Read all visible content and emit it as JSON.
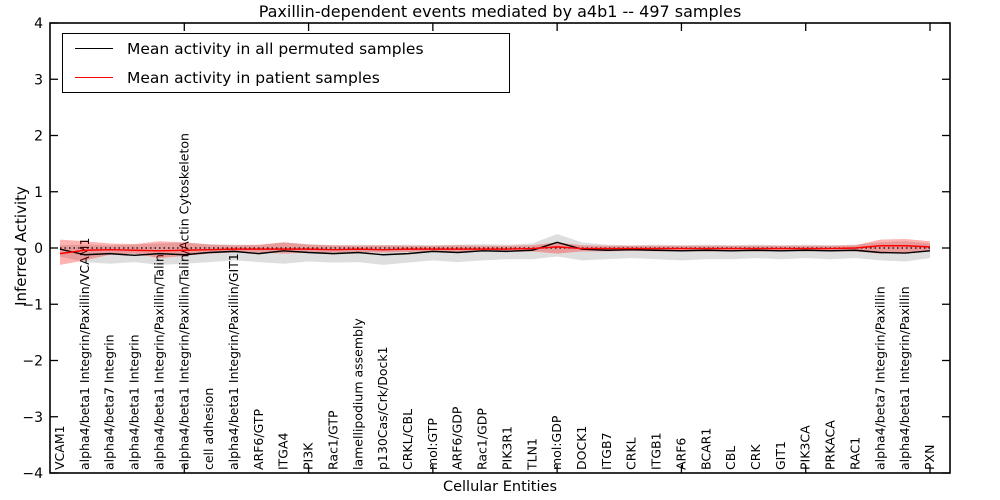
{
  "title": "Paxillin-dependent events mediated by a4b1 -- 497 samples",
  "axes": {
    "xlabel": "Cellular Entities",
    "ylabel": "Inferred Activity"
  },
  "legend": {
    "entries": [
      {
        "label": "Mean activity in all permuted samples",
        "color": "#000000"
      },
      {
        "label": "Mean activity in patient samples",
        "color": "#ff0000"
      }
    ],
    "position": "upper left"
  },
  "colors": {
    "permuted_line": "#000000",
    "patient_line": "#ff0000",
    "permuted_band": "#000000",
    "patient_band": "#ff0000",
    "frame": "#000000"
  },
  "chart_data": {
    "type": "line",
    "title": "Paxillin-dependent events mediated by a4b1 -- 497 samples",
    "xlabel": "Cellular Entities",
    "ylabel": "Inferred Activity",
    "ylim": [
      -4,
      4
    ],
    "yticks": [
      "4",
      "3",
      "2",
      "1",
      "0",
      "−1",
      "−2",
      "−3",
      "−4"
    ],
    "ytick_values": [
      4,
      3,
      2,
      1,
      0,
      -1,
      -2,
      -3,
      -4
    ],
    "xtick_every": 5,
    "grid": false,
    "legend_position": "upper left",
    "zero_line": {
      "value": 0,
      "style": "dotted",
      "color": "#000000"
    },
    "categories": [
      "VCAM1",
      "alpha4/beta1 Integrin/Paxillin/VCAM1",
      "alpha4/beta7 Integrin",
      "alpha4/beta1 Integrin",
      "alpha4/beta1 Integrin/Paxillin/Talin",
      "alpha4/beta1 Integrin/Paxillin/Talin/Actin Cytoskeleton",
      "cell adhesion",
      "alpha4/beta1 Integrin/Paxillin/GIT1",
      "ARF6/GTP",
      "ITGA4",
      "PI3K",
      "Rac1/GTP",
      "lamellipodium assembly",
      "p130Cas/Crk/Dock1",
      "CRKL/CBL",
      "mol:GTP",
      "ARF6/GDP",
      "Rac1/GDP",
      "PIK3R1",
      "TLN1",
      "mol:GDP",
      "DOCK1",
      "ITGB7",
      "CRKL",
      "ITGB1",
      "ARF6",
      "BCAR1",
      "CBL",
      "CRK",
      "GIT1",
      "PIK3CA",
      "PRKACA",
      "RAC1",
      "alpha4/beta7 Integrin/Paxillin",
      "alpha4/beta1 Integrin/Paxillin",
      "PXN"
    ],
    "series": [
      {
        "name": "Mean activity in all permuted samples",
        "color": "#000000",
        "style": "solid",
        "values": [
          -0.02,
          -0.12,
          -0.1,
          -0.13,
          -0.1,
          -0.12,
          -0.08,
          -0.06,
          -0.1,
          -0.05,
          -0.08,
          -0.1,
          -0.08,
          -0.12,
          -0.1,
          -0.06,
          -0.08,
          -0.05,
          -0.06,
          -0.04,
          0.1,
          -0.02,
          -0.04,
          -0.03,
          -0.04,
          -0.05,
          -0.04,
          -0.05,
          -0.04,
          -0.05,
          -0.04,
          -0.05,
          -0.04,
          -0.08,
          -0.09,
          -0.05
        ]
      },
      {
        "name": "Mean activity in patient samples",
        "color": "#ff0000",
        "style": "solid",
        "values": [
          -0.1,
          -0.04,
          -0.03,
          -0.04,
          -0.05,
          -0.04,
          -0.03,
          -0.02,
          -0.02,
          -0.02,
          -0.02,
          -0.03,
          -0.02,
          -0.03,
          -0.02,
          -0.02,
          -0.02,
          -0.02,
          -0.02,
          -0.01,
          0.02,
          -0.01,
          -0.01,
          -0.01,
          -0.01,
          -0.01,
          -0.01,
          -0.01,
          -0.01,
          -0.01,
          -0.01,
          -0.01,
          0.0,
          0.04,
          0.04,
          0.02
        ]
      }
    ],
    "bands": [
      {
        "name": "permuted samples range",
        "color": "#000000",
        "opacity": 0.13,
        "upper": [
          0.05,
          0.06,
          0.05,
          0.06,
          0.08,
          0.1,
          0.07,
          0.06,
          0.05,
          0.1,
          0.07,
          0.05,
          0.06,
          0.05,
          0.06,
          0.05,
          0.06,
          0.07,
          0.06,
          0.08,
          0.25,
          0.1,
          0.06,
          0.05,
          0.06,
          0.05,
          0.06,
          0.05,
          0.06,
          0.05,
          0.06,
          0.05,
          0.06,
          0.1,
          0.12,
          0.08
        ],
        "lower": [
          -0.15,
          -0.25,
          -0.28,
          -0.25,
          -0.3,
          -0.28,
          -0.25,
          -0.22,
          -0.25,
          -0.28,
          -0.24,
          -0.26,
          -0.25,
          -0.3,
          -0.26,
          -0.22,
          -0.25,
          -0.22,
          -0.2,
          -0.2,
          -0.15,
          -0.22,
          -0.2,
          -0.18,
          -0.2,
          -0.22,
          -0.2,
          -0.2,
          -0.18,
          -0.2,
          -0.18,
          -0.2,
          -0.18,
          -0.22,
          -0.24,
          -0.18
        ]
      },
      {
        "name": "patient samples range",
        "color": "#ff0000",
        "opacity": 0.3,
        "upper": [
          0.15,
          0.12,
          0.08,
          0.07,
          0.12,
          0.1,
          0.06,
          0.05,
          0.06,
          0.1,
          0.06,
          0.05,
          0.04,
          0.05,
          0.04,
          0.04,
          0.05,
          0.04,
          0.04,
          0.05,
          0.1,
          0.05,
          0.04,
          0.04,
          0.04,
          0.04,
          0.04,
          0.04,
          0.04,
          0.04,
          0.04,
          0.04,
          0.05,
          0.15,
          0.16,
          0.12
        ],
        "lower": [
          -0.3,
          -0.22,
          -0.12,
          -0.1,
          -0.18,
          -0.14,
          -0.1,
          -0.08,
          -0.08,
          -0.1,
          -0.08,
          -0.08,
          -0.07,
          -0.08,
          -0.07,
          -0.06,
          -0.07,
          -0.06,
          -0.06,
          -0.06,
          -0.1,
          -0.06,
          -0.06,
          -0.05,
          -0.06,
          -0.05,
          -0.06,
          -0.05,
          -0.06,
          -0.05,
          -0.05,
          -0.05,
          -0.06,
          -0.1,
          -0.08,
          -0.06
        ]
      }
    ]
  }
}
